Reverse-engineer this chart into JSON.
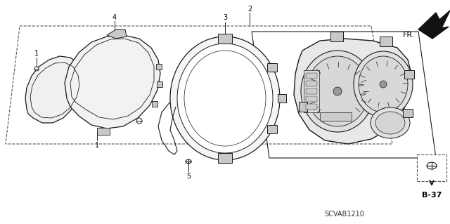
{
  "background_color": "#ffffff",
  "line_color": "#1a1a1a",
  "gray_fill": "#e8e8e8",
  "gray_dark": "#c8c8c8",
  "diagram_code": "SCVAB1210",
  "page_ref": "B-37",
  "direction_label": "FR.",
  "figsize": [
    6.4,
    3.19
  ],
  "dpi": 100
}
